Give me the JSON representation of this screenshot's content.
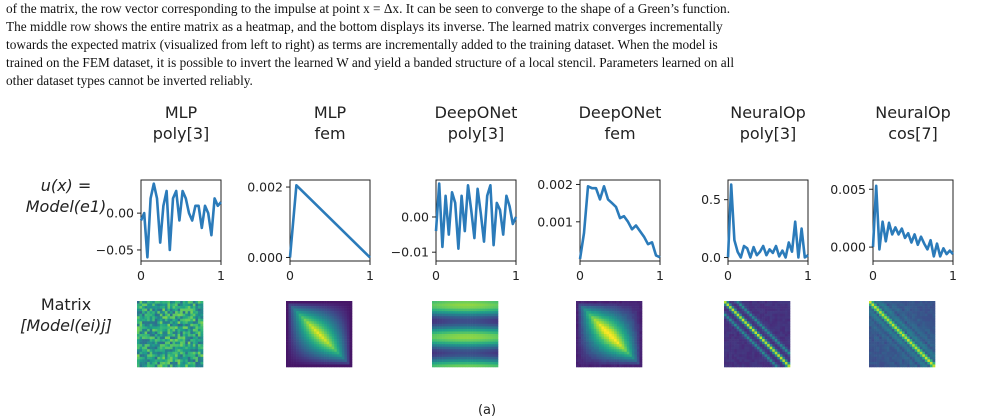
{
  "caption": {
    "line1": "of the matrix, the row vector corresponding to the impulse at point x = Δx. It can be seen to converge to the shape of a Green’s function.",
    "line2": "The middle row shows the entire matrix as a heatmap, and the bottom displays its inverse. The learned matrix converges incrementally",
    "line3": "towards the expected matrix (visualized from left to right) as terms are incrementally added to the training dataset. When the model is",
    "line4": "trained on the FEM dataset, it is possible to invert the learned W and yield a banded structure of a local stencil. Parameters learned on all",
    "line5": "other dataset types cannot be inverted reliably."
  },
  "figure": {
    "row_label_top": [
      "u(x) =",
      "Model(e1)"
    ],
    "row_label_mid": [
      "Matrix",
      "[Model(ei)j]"
    ],
    "bottom_label": "(a)"
  },
  "chart_data": [
    {
      "type": "line",
      "title": "MLP poly[3]",
      "title_lines": [
        "MLP",
        "poly[3]"
      ],
      "x": [
        0.0,
        0.04,
        0.08,
        0.12,
        0.16,
        0.2,
        0.24,
        0.28,
        0.32,
        0.36,
        0.4,
        0.44,
        0.48,
        0.52,
        0.56,
        0.6,
        0.64,
        0.68,
        0.72,
        0.76,
        0.8,
        0.84,
        0.88,
        0.92,
        0.96,
        1.0
      ],
      "y": [
        -0.01,
        0.0,
        -0.06,
        0.02,
        0.04,
        0.02,
        -0.04,
        0.01,
        0.03,
        -0.05,
        0.02,
        0.03,
        -0.01,
        0.03,
        0.02,
        0.0,
        -0.01,
        0.01,
        0.01,
        -0.02,
        0.01,
        0.0,
        -0.03,
        0.02,
        0.01,
        0.015
      ],
      "ylim": [
        -0.065,
        0.045
      ],
      "yticks": [
        {
          "v": 0.0,
          "label": "0.00"
        },
        {
          "v": -0.05,
          "label": "−0.05"
        }
      ],
      "xticks": [
        {
          "v": 0,
          "label": "0"
        },
        {
          "v": 1,
          "label": "1"
        }
      ],
      "ytick_side": "left"
    },
    {
      "type": "line",
      "title": "MLP fem",
      "title_lines": [
        "MLP",
        "fem"
      ],
      "x": [
        0.0,
        0.08,
        1.0
      ],
      "y": [
        0.0,
        0.00205,
        0.0
      ],
      "ylim": [
        -0.0001,
        0.0022
      ],
      "yticks": [
        {
          "v": 0.002,
          "label": "0.002"
        },
        {
          "v": 0.0,
          "label": "0.000"
        }
      ],
      "xticks": [
        {
          "v": 0,
          "label": "0"
        },
        {
          "v": 1,
          "label": "1"
        }
      ],
      "ytick_side": "left"
    },
    {
      "type": "line",
      "title": "DeepONet poly[3]",
      "title_lines": [
        "DeepONet",
        "poly[3]"
      ],
      "x": [
        0.0,
        0.04,
        0.08,
        0.12,
        0.16,
        0.2,
        0.24,
        0.28,
        0.32,
        0.36,
        0.4,
        0.44,
        0.48,
        0.52,
        0.56,
        0.6,
        0.64,
        0.68,
        0.72,
        0.76,
        0.8,
        0.84,
        0.88,
        0.92,
        0.96,
        1.0
      ],
      "y": [
        -0.004,
        0.0095,
        -0.0085,
        0.006,
        -0.005,
        0.007,
        0.004,
        -0.009,
        0.006,
        -0.004,
        0.009,
        0.002,
        -0.006,
        0.008,
        0.001,
        -0.007,
        0.006,
        0.009,
        -0.008,
        0.004,
        0.002,
        -0.005,
        0.006,
        0.003,
        -0.002,
        0.0
      ],
      "ylim": [
        -0.0125,
        0.0105
      ],
      "yticks": [
        {
          "v": 0.0,
          "label": "0.00"
        },
        {
          "v": -0.01,
          "label": "−0.01"
        }
      ],
      "xticks": [
        {
          "v": 0,
          "label": "0"
        },
        {
          "v": 1,
          "label": "1"
        }
      ],
      "ytick_side": "left"
    },
    {
      "type": "line",
      "title": "DeepONet fem",
      "title_lines": [
        "DeepONet",
        "fem"
      ],
      "x": [
        0.0,
        0.05,
        0.1,
        0.15,
        0.2,
        0.25,
        0.3,
        0.35,
        0.4,
        0.45,
        0.5,
        0.55,
        0.6,
        0.65,
        0.7,
        0.75,
        0.8,
        0.85,
        0.9,
        0.95,
        1.0
      ],
      "y": [
        0.0,
        0.0007,
        0.00195,
        0.0019,
        0.0019,
        0.0016,
        0.00195,
        0.0016,
        0.0015,
        0.0014,
        0.0011,
        0.00115,
        0.001,
        0.0008,
        0.0009,
        0.00075,
        0.0006,
        0.0004,
        0.00045,
        0.0001,
        5e-05
      ],
      "ylim": [
        -5e-05,
        0.00212
      ],
      "yticks": [
        {
          "v": 0.002,
          "label": "0.002"
        },
        {
          "v": 0.001,
          "label": "0.001"
        }
      ],
      "xticks": [
        {
          "v": 0,
          "label": "0"
        },
        {
          "v": 1,
          "label": "1"
        }
      ],
      "ytick_side": "left"
    },
    {
      "type": "line",
      "title": "NeuralOp poly[3]",
      "title_lines": [
        "NeuralOp",
        "poly[3]"
      ],
      "x": [
        0.0,
        0.04,
        0.08,
        0.12,
        0.16,
        0.2,
        0.24,
        0.28,
        0.32,
        0.36,
        0.4,
        0.44,
        0.48,
        0.52,
        0.56,
        0.6,
        0.64,
        0.68,
        0.72,
        0.76,
        0.8,
        0.84,
        0.88,
        0.92,
        0.96,
        1.0
      ],
      "y": [
        0.0,
        0.63,
        0.15,
        0.05,
        0.0,
        0.1,
        0.08,
        0.0,
        0.09,
        0.02,
        0.05,
        0.1,
        0.02,
        0.07,
        0.04,
        0.1,
        0.01,
        0.06,
        0.0,
        0.13,
        0.05,
        0.31,
        0.0,
        0.25,
        0.0,
        0.02
      ],
      "ylim": [
        -0.03,
        0.67
      ],
      "yticks": [
        {
          "v": 0.5,
          "label": "0.5"
        },
        {
          "v": 0.0,
          "label": "0.0"
        }
      ],
      "xticks": [
        {
          "v": 0,
          "label": "0"
        },
        {
          "v": 1,
          "label": "1"
        }
      ],
      "ytick_side": "left"
    },
    {
      "type": "line",
      "title": "NeuralOp cos[7]",
      "title_lines": [
        "NeuralOp",
        "cos[7]"
      ],
      "x": [
        0.0,
        0.04,
        0.08,
        0.12,
        0.16,
        0.2,
        0.24,
        0.28,
        0.32,
        0.36,
        0.4,
        0.44,
        0.48,
        0.52,
        0.56,
        0.6,
        0.64,
        0.68,
        0.72,
        0.76,
        0.8,
        0.84,
        0.88,
        0.92,
        0.96,
        1.0
      ],
      "y": [
        0.0,
        0.0053,
        -0.0002,
        0.0022,
        0.0005,
        0.0021,
        0.0011,
        0.0017,
        0.0011,
        0.0016,
        0.0008,
        0.0012,
        0.0004,
        0.0011,
        0.0002,
        0.0009,
        0.0003,
        -0.0002,
        0.0006,
        -0.0008,
        0.0003,
        -0.0008,
        -0.0001,
        -0.0006,
        -0.0003,
        -0.0006
      ],
      "ylim": [
        -0.0012,
        0.0058
      ],
      "yticks": [
        {
          "v": 0.005,
          "label": "0.005"
        },
        {
          "v": 0.0,
          "label": "0.000"
        }
      ],
      "xticks": [
        {
          "v": 0,
          "label": "0"
        },
        {
          "v": 1,
          "label": "1"
        }
      ],
      "ytick_side": "left"
    }
  ],
  "heatmaps": [
    {
      "name": "MLP poly[3]",
      "pattern": "noise",
      "colormap": "viridis"
    },
    {
      "name": "MLP fem",
      "pattern": "green",
      "colormap": "viridis"
    },
    {
      "name": "DeepONet poly[3]",
      "pattern": "stripes",
      "colormap": "viridis"
    },
    {
      "name": "DeepONet fem",
      "pattern": "green-soft",
      "colormap": "viridis"
    },
    {
      "name": "NeuralOp poly[3]",
      "pattern": "banded",
      "colormap": "viridis"
    },
    {
      "name": "NeuralOp cos[7]",
      "pattern": "banded-soft",
      "colormap": "viridis"
    }
  ]
}
